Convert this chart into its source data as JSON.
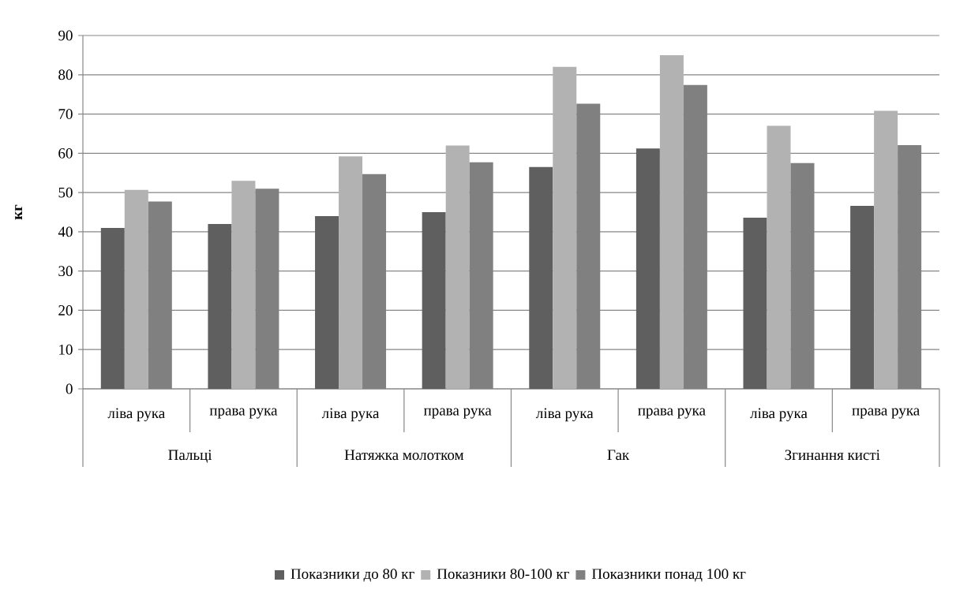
{
  "chart_data": {
    "type": "bar",
    "ylabel": "кг",
    "categories": [
      "ліва рука",
      "права рука",
      "ліва рука",
      "права рука",
      "ліва рука",
      "права рука",
      "ліва рука",
      "права рука"
    ],
    "annotations": [
      "Пальці",
      "Натяжка молотком",
      "Гак",
      "Згинання кисті"
    ],
    "series": [
      {
        "name": "Показники до 80 кг",
        "color": "#5f5f5f",
        "values": [
          41,
          42,
          44,
          45,
          56.5,
          61.2,
          43.6,
          46.6
        ]
      },
      {
        "name": "Показники 80-100 кг",
        "color": "#b2b2b2",
        "values": [
          50.7,
          53,
          59.2,
          62,
          82,
          85,
          67,
          70.8
        ]
      },
      {
        "name": "Показники понад 100 кг",
        "color": "#808080",
        "values": [
          47.7,
          51,
          54.7,
          57.7,
          72.6,
          77.4,
          57.5,
          62.1
        ]
      }
    ],
    "ylim": [
      0,
      90
    ],
    "yticks": [
      0,
      10,
      20,
      30,
      40,
      50,
      60,
      70,
      80,
      90
    ],
    "grid": "y",
    "legend": "bottom"
  }
}
